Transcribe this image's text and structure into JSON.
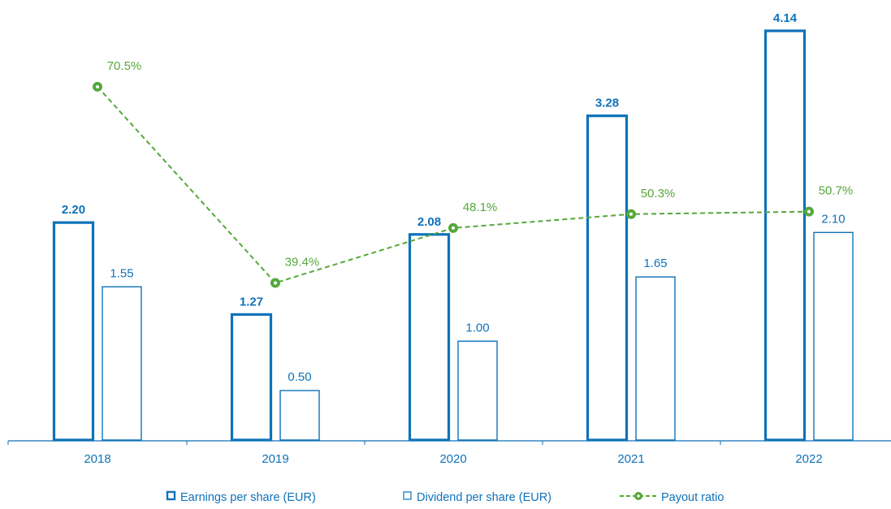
{
  "colors": {
    "eps": "#0e72b9",
    "dps": "#0e72b9",
    "payout": "#55a83a",
    "axis": "#0e72b9"
  },
  "chart_data": {
    "type": "bar",
    "categories": [
      "2018",
      "2019",
      "2020",
      "2021",
      "2022"
    ],
    "series": [
      {
        "name": "Earnings per share (EUR)",
        "values": [
          2.2,
          1.27,
          2.08,
          3.28,
          4.14
        ],
        "labels": [
          "2.20",
          "1.27",
          "2.08",
          "3.28",
          "4.14"
        ]
      },
      {
        "name": "Dividend per share (EUR)",
        "values": [
          1.55,
          0.5,
          1.0,
          1.65,
          2.1
        ],
        "labels": [
          "1.55",
          "0.50",
          "1.00",
          "1.65",
          "2.10"
        ]
      }
    ],
    "line_series": {
      "name": "Payout ratio",
      "values": [
        70.5,
        39.4,
        48.1,
        50.3,
        50.7
      ],
      "labels": [
        "70.5%",
        "39.4%",
        "48.1%",
        "50.3%",
        "50.7%"
      ]
    },
    "ylim": [
      0,
      4.14
    ],
    "y2lim": [
      0,
      80
    ],
    "legend_position": "bottom-center",
    "grid": false
  }
}
